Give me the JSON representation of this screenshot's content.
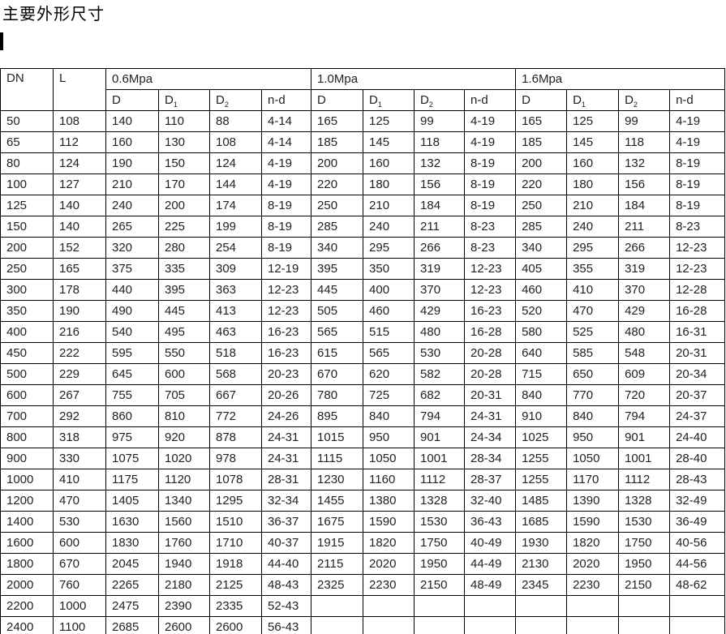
{
  "page": {
    "title": "主要外形尺寸"
  },
  "colors": {
    "background": "#ffffff",
    "text": "#222222",
    "border": "#000000",
    "title_text": "#000000"
  },
  "table": {
    "header": {
      "dn": "DN",
      "l": "L",
      "groups": [
        "0.6Mpa",
        "1.0Mpa",
        "1.6Mpa"
      ],
      "subcols": [
        {
          "base": "D",
          "sub": ""
        },
        {
          "base": "D",
          "sub": "1"
        },
        {
          "base": "D",
          "sub": "2"
        },
        {
          "base": "n-d",
          "sub": ""
        }
      ]
    },
    "rows": [
      [
        "50",
        "108",
        "140",
        "110",
        "88",
        "4-14",
        "165",
        "125",
        "99",
        "4-19",
        "165",
        "125",
        "99",
        "4-19"
      ],
      [
        "65",
        "112",
        "160",
        "130",
        "108",
        "4-14",
        "185",
        "145",
        "118",
        "4-19",
        "185",
        "145",
        "118",
        "4-19"
      ],
      [
        "80",
        "124",
        "190",
        "150",
        "124",
        "4-19",
        "200",
        "160",
        "132",
        "8-19",
        "200",
        "160",
        "132",
        "8-19"
      ],
      [
        "100",
        "127",
        "210",
        "170",
        "144",
        "4-19",
        "220",
        "180",
        "156",
        "8-19",
        "220",
        "180",
        "156",
        "8-19"
      ],
      [
        "125",
        "140",
        "240",
        "200",
        "174",
        "8-19",
        "250",
        "210",
        "184",
        "8-19",
        "250",
        "210",
        "184",
        "8-19"
      ],
      [
        "150",
        "140",
        "265",
        "225",
        "199",
        "8-19",
        "285",
        "240",
        "211",
        "8-23",
        "285",
        "240",
        "211",
        "8-23"
      ],
      [
        "200",
        "152",
        "320",
        "280",
        "254",
        "8-19",
        "340",
        "295",
        "266",
        "8-23",
        "340",
        "295",
        "266",
        "12-23"
      ],
      [
        "250",
        "165",
        "375",
        "335",
        "309",
        "12-19",
        "395",
        "350",
        "319",
        "12-23",
        "405",
        "355",
        "319",
        "12-23"
      ],
      [
        "300",
        "178",
        "440",
        "395",
        "363",
        "12-23",
        "445",
        "400",
        "370",
        "12-23",
        "460",
        "410",
        "370",
        "12-28"
      ],
      [
        "350",
        "190",
        "490",
        "445",
        "413",
        "12-23",
        "505",
        "460",
        "429",
        "16-23",
        "520",
        "470",
        "429",
        "16-28"
      ],
      [
        "400",
        "216",
        "540",
        "495",
        "463",
        "16-23",
        "565",
        "515",
        "480",
        "16-28",
        "580",
        "525",
        "480",
        "16-31"
      ],
      [
        "450",
        "222",
        "595",
        "550",
        "518",
        "16-23",
        "615",
        "565",
        "530",
        "20-28",
        "640",
        "585",
        "548",
        "20-31"
      ],
      [
        "500",
        "229",
        "645",
        "600",
        "568",
        "20-23",
        "670",
        "620",
        "582",
        "20-28",
        "715",
        "650",
        "609",
        "20-34"
      ],
      [
        "600",
        "267",
        "755",
        "705",
        "667",
        "20-26",
        "780",
        "725",
        "682",
        "20-31",
        "840",
        "770",
        "720",
        "20-37"
      ],
      [
        "700",
        "292",
        "860",
        "810",
        "772",
        "24-26",
        "895",
        "840",
        "794",
        "24-31",
        "910",
        "840",
        "794",
        "24-37"
      ],
      [
        "800",
        "318",
        "975",
        "920",
        "878",
        "24-31",
        "1015",
        "950",
        "901",
        "24-34",
        "1025",
        "950",
        "901",
        "24-40"
      ],
      [
        "900",
        "330",
        "1075",
        "1020",
        "978",
        "24-31",
        "1115",
        "1050",
        "1001",
        "28-34",
        "1255",
        "1050",
        "1001",
        "28-40"
      ],
      [
        "1000",
        "410",
        "1175",
        "1120",
        "1078",
        "28-31",
        "1230",
        "1160",
        "1112",
        "28-37",
        "1255",
        "1170",
        "1112",
        "28-43"
      ],
      [
        "1200",
        "470",
        "1405",
        "1340",
        "1295",
        "32-34",
        "1455",
        "1380",
        "1328",
        "32-40",
        "1485",
        "1390",
        "1328",
        "32-49"
      ],
      [
        "1400",
        "530",
        "1630",
        "1560",
        "1510",
        "36-37",
        "1675",
        "1590",
        "1530",
        "36-43",
        "1685",
        "1590",
        "1530",
        "36-49"
      ],
      [
        "1600",
        "600",
        "1830",
        "1760",
        "1710",
        "40-37",
        "1915",
        "1820",
        "1750",
        "40-49",
        "1930",
        "1820",
        "1750",
        "40-56"
      ],
      [
        "1800",
        "670",
        "2045",
        "1940",
        "1918",
        "44-40",
        "2115",
        "2020",
        "1950",
        "44-49",
        "2130",
        "2020",
        "1950",
        "44-56"
      ],
      [
        "2000",
        "760",
        "2265",
        "2180",
        "2125",
        "48-43",
        "2325",
        "2230",
        "2150",
        "48-49",
        "2345",
        "2230",
        "2150",
        "48-62"
      ],
      [
        "2200",
        "1000",
        "2475",
        "2390",
        "2335",
        "52-43",
        "",
        "",
        "",
        "",
        "",
        "",
        "",
        ""
      ],
      [
        "2400",
        "1100",
        "2685",
        "2600",
        "2600",
        "56-43",
        "",
        "",
        "",
        "",
        "",
        "",
        "",
        ""
      ]
    ]
  }
}
